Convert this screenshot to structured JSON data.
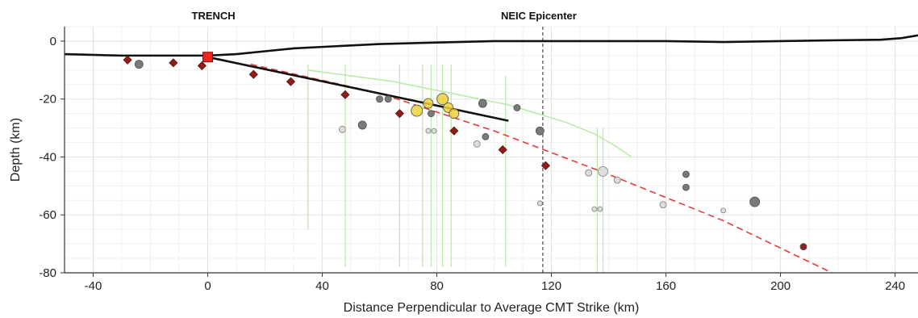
{
  "chart_data": {
    "type": "scatter",
    "title": "",
    "xlabel": "Distance Perpendicular to Average CMT Strike (km)",
    "ylabel": "Depth (km)",
    "xlim": [
      -50,
      248
    ],
    "ylim": [
      -80,
      5
    ],
    "xticks": [
      -40,
      0,
      40,
      80,
      120,
      160,
      200,
      240
    ],
    "yticks": [
      0,
      -20,
      -40,
      -60,
      -80
    ],
    "grid": true,
    "annotations": [
      {
        "text": "TRENCH",
        "x": 2
      },
      {
        "text": "NEIC Epicenter",
        "x": 117
      }
    ],
    "epicenter_line_x": 117,
    "trench_marker": {
      "x": 0,
      "y": -5.5,
      "color": "#e8281e"
    },
    "topography": {
      "color": "#111111",
      "x": [
        -50,
        -30,
        -10,
        0,
        10,
        20,
        30,
        40,
        50,
        60,
        80,
        100,
        120,
        140,
        160,
        180,
        200,
        220,
        235,
        242,
        248
      ],
      "y": [
        -4.5,
        -5,
        -5,
        -5,
        -4.5,
        -3.5,
        -2.5,
        -2,
        -1.5,
        -1,
        -0.5,
        0,
        0,
        0,
        0,
        -0.3,
        0,
        0.3,
        0.5,
        1,
        2
      ]
    },
    "slab_model_solid": {
      "color": "#111111",
      "x": [
        0,
        105
      ],
      "y": [
        -5.5,
        -27.5
      ]
    },
    "slab_model_dashed": {
      "color": "#e8393a",
      "x": [
        15,
        60,
        100,
        140,
        180,
        218
      ],
      "y": [
        -8,
        -18,
        -31,
        -46,
        -62,
        -80
      ]
    },
    "green_profile": {
      "color": "#b8eaa8",
      "x": [
        35,
        50,
        65,
        75,
        85,
        95,
        105,
        115,
        125,
        135,
        142,
        148
      ],
      "y": [
        -10,
        -12,
        -14,
        -16,
        -18,
        -20,
        -22,
        -25,
        -28,
        -32,
        -36,
        -40
      ]
    },
    "green_verticals": {
      "color": "#b8eaa8",
      "segments": [
        {
          "x": 35,
          "y": [
            -8,
            -65
          ]
        },
        {
          "x": 48,
          "y": [
            -8,
            -78
          ]
        },
        {
          "x": 67,
          "y": [
            -8,
            -78
          ]
        },
        {
          "x": 75,
          "y": [
            -8,
            -78
          ]
        },
        {
          "x": 78,
          "y": [
            -8,
            -78
          ]
        },
        {
          "x": 82,
          "y": [
            -8,
            -78
          ]
        },
        {
          "x": 85,
          "y": [
            -8,
            -78
          ]
        },
        {
          "x": 104,
          "y": [
            -12,
            -78
          ]
        },
        {
          "x": 136,
          "y": [
            -30,
            -80
          ]
        },
        {
          "x": 138,
          "y": [
            -30,
            -80
          ]
        }
      ]
    },
    "series": [
      {
        "symbol": "diamond",
        "color": "#8f1e1a",
        "x": [
          -28,
          -12,
          -2,
          16,
          29,
          48,
          67,
          86,
          103,
          118
        ],
        "y": [
          -6.5,
          -7.5,
          -8.5,
          -11.5,
          -14,
          -18.5,
          -25,
          -31,
          -37.5,
          -43
        ]
      },
      {
        "symbol": "circle",
        "color": "#7a7a7a",
        "x": [
          -24,
          54,
          60,
          63,
          78,
          96,
          97,
          108,
          116,
          167,
          167,
          191
        ],
        "y": [
          -8,
          -29,
          -20,
          -20,
          -25,
          -21.5,
          -33,
          -23,
          -31,
          -46,
          -50.5,
          -55.5
        ],
        "sizes": [
          5,
          5,
          4,
          4,
          4,
          5,
          4,
          4,
          5,
          4,
          4,
          6
        ]
      },
      {
        "symbol": "circle",
        "color": "#dddddd",
        "x": [
          47,
          77,
          79,
          94,
          116,
          133,
          135,
          137,
          138,
          143,
          159,
          180
        ],
        "y": [
          -30.5,
          -31,
          -31,
          -35.5,
          -56,
          -45.5,
          -58,
          -58,
          -45,
          -48,
          -56.5,
          -58.5
        ],
        "sizes": [
          4,
          3,
          3,
          4,
          3,
          4,
          3,
          3,
          6,
          4,
          4,
          3
        ]
      },
      {
        "symbol": "circle",
        "color": "#f0d13a",
        "x": [
          73,
          77,
          82,
          84,
          86
        ],
        "y": [
          -24,
          -21.5,
          -20,
          -23,
          -25
        ],
        "sizes": [
          7,
          6,
          7,
          6,
          6
        ]
      },
      {
        "symbol": "circle",
        "color": "#8f1e1a",
        "x": [
          208
        ],
        "y": [
          -71
        ],
        "sizes": [
          4
        ]
      }
    ]
  }
}
